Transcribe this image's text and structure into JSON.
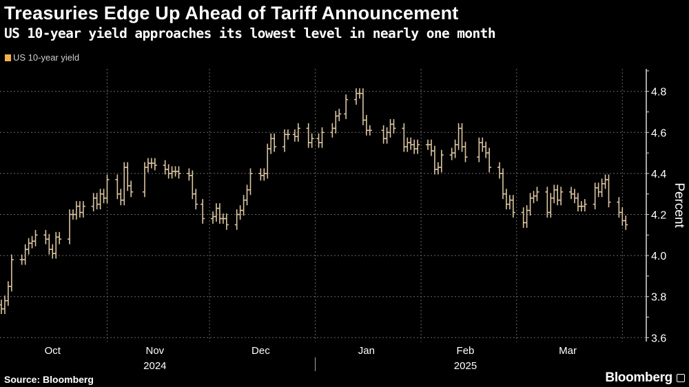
{
  "header": {
    "title": "Treasuries Edge Up Ahead of Tariff Announcement",
    "subtitle": "US 10-year yield approaches its lowest level in nearly one month"
  },
  "footer": {
    "source": "Source: Bloomberg",
    "logo": "Bloomberg"
  },
  "chart_data": {
    "type": "ohlc",
    "title": "Treasuries Edge Up Ahead of Tariff Announcement",
    "subtitle": "US 10-year yield approaches its lowest level in nearly one month",
    "ylabel": "Percent",
    "ylim": [
      3.6,
      4.9
    ],
    "yticks": [
      "3.6",
      "3.8",
      "4.0",
      "4.2",
      "4.4",
      "4.6",
      "4.8"
    ],
    "xlim": [
      "2024-10-01",
      "2025-04-07"
    ],
    "month_ticks": [
      {
        "label": "Oct",
        "date": "2024-10-16"
      },
      {
        "label": "Nov",
        "date": "2024-11-15"
      },
      {
        "label": "Dec",
        "date": "2024-12-16"
      },
      {
        "label": "Jan",
        "date": "2025-01-16"
      },
      {
        "label": "Feb",
        "date": "2025-02-14"
      },
      {
        "label": "Mar",
        "date": "2025-03-16"
      }
    ],
    "year_labels": [
      {
        "label": "2024",
        "date": "2024-11-15"
      },
      {
        "label": "2025",
        "date": "2025-02-14"
      }
    ],
    "grid": true,
    "legend_position": "top-left",
    "colors": {
      "series": "#f5b04e",
      "bars": "#dcc6a2",
      "grid": "#6a6a6a"
    },
    "series": [
      {
        "name": "US 10-year yield",
        "x": [
          "2024-10-01",
          "2024-10-02",
          "2024-10-03",
          "2024-10-04",
          "2024-10-07",
          "2024-10-08",
          "2024-10-09",
          "2024-10-10",
          "2024-10-11",
          "2024-10-14",
          "2024-10-15",
          "2024-10-16",
          "2024-10-17",
          "2024-10-18",
          "2024-10-21",
          "2024-10-22",
          "2024-10-23",
          "2024-10-24",
          "2024-10-25",
          "2024-10-28",
          "2024-10-29",
          "2024-10-30",
          "2024-10-31",
          "2024-11-01",
          "2024-11-04",
          "2024-11-05",
          "2024-11-06",
          "2024-11-07",
          "2024-11-08",
          "2024-11-12",
          "2024-11-13",
          "2024-11-14",
          "2024-11-15",
          "2024-11-18",
          "2024-11-19",
          "2024-11-20",
          "2024-11-21",
          "2024-11-22",
          "2024-11-25",
          "2024-11-26",
          "2024-11-27",
          "2024-11-29",
          "2024-12-02",
          "2024-12-03",
          "2024-12-04",
          "2024-12-05",
          "2024-12-06",
          "2024-12-09",
          "2024-12-10",
          "2024-12-11",
          "2024-12-12",
          "2024-12-13",
          "2024-12-16",
          "2024-12-17",
          "2024-12-18",
          "2024-12-19",
          "2024-12-20",
          "2024-12-23",
          "2024-12-24",
          "2024-12-26",
          "2024-12-27",
          "2024-12-30",
          "2024-12-31",
          "2025-01-02",
          "2025-01-03",
          "2025-01-06",
          "2025-01-07",
          "2025-01-08",
          "2025-01-10",
          "2025-01-13",
          "2025-01-14",
          "2025-01-15",
          "2025-01-16",
          "2025-01-17",
          "2025-01-21",
          "2025-01-22",
          "2025-01-23",
          "2025-01-24",
          "2025-01-27",
          "2025-01-28",
          "2025-01-29",
          "2025-01-30",
          "2025-01-31",
          "2025-02-03",
          "2025-02-04",
          "2025-02-05",
          "2025-02-06",
          "2025-02-07",
          "2025-02-10",
          "2025-02-11",
          "2025-02-12",
          "2025-02-13",
          "2025-02-14",
          "2025-02-18",
          "2025-02-19",
          "2025-02-20",
          "2025-02-21",
          "2025-02-24",
          "2025-02-25",
          "2025-02-26",
          "2025-02-27",
          "2025-02-28",
          "2025-03-03",
          "2025-03-04",
          "2025-03-05",
          "2025-03-06",
          "2025-03-07",
          "2025-03-10",
          "2025-03-11",
          "2025-03-12",
          "2025-03-13",
          "2025-03-14",
          "2025-03-17",
          "2025-03-18",
          "2025-03-19",
          "2025-03-20",
          "2025-03-21",
          "2025-03-24",
          "2025-03-25",
          "2025-03-26",
          "2025-03-27",
          "2025-03-28",
          "2025-03-31",
          "2025-04-01",
          "2025-04-02"
        ],
        "close": [
          3.74,
          3.78,
          3.85,
          3.98,
          3.98,
          4.03,
          4.06,
          4.07,
          4.1,
          4.08,
          4.03,
          4.01,
          4.09,
          4.08,
          4.2,
          4.2,
          4.24,
          4.21,
          4.24,
          4.28,
          4.25,
          4.3,
          4.28,
          4.37,
          4.3,
          4.27,
          4.43,
          4.34,
          4.31,
          4.43,
          4.45,
          4.45,
          4.44,
          4.42,
          4.4,
          4.41,
          4.41,
          4.4,
          4.39,
          4.3,
          4.25,
          4.18,
          4.19,
          4.23,
          4.18,
          4.18,
          4.15,
          4.2,
          4.22,
          4.27,
          4.32,
          4.4,
          4.39,
          4.4,
          4.52,
          4.57,
          4.53,
          4.59,
          4.59,
          4.58,
          4.62,
          4.55,
          4.57,
          4.55,
          4.6,
          4.62,
          4.68,
          4.69,
          4.76,
          4.79,
          4.79,
          4.66,
          4.61,
          4.61,
          4.57,
          4.6,
          4.64,
          4.62,
          4.53,
          4.55,
          4.54,
          4.52,
          4.54,
          4.54,
          4.51,
          4.42,
          4.43,
          4.49,
          4.5,
          4.54,
          4.62,
          4.53,
          4.48,
          4.55,
          4.53,
          4.5,
          4.43,
          4.4,
          4.3,
          4.25,
          4.27,
          4.21,
          4.16,
          4.22,
          4.28,
          4.29,
          4.31,
          4.21,
          4.28,
          4.32,
          4.27,
          4.31,
          4.3,
          4.28,
          4.24,
          4.24,
          4.25,
          4.33,
          4.31,
          4.35,
          4.37,
          4.26,
          4.21,
          4.17,
          4.15
        ]
      }
    ]
  }
}
